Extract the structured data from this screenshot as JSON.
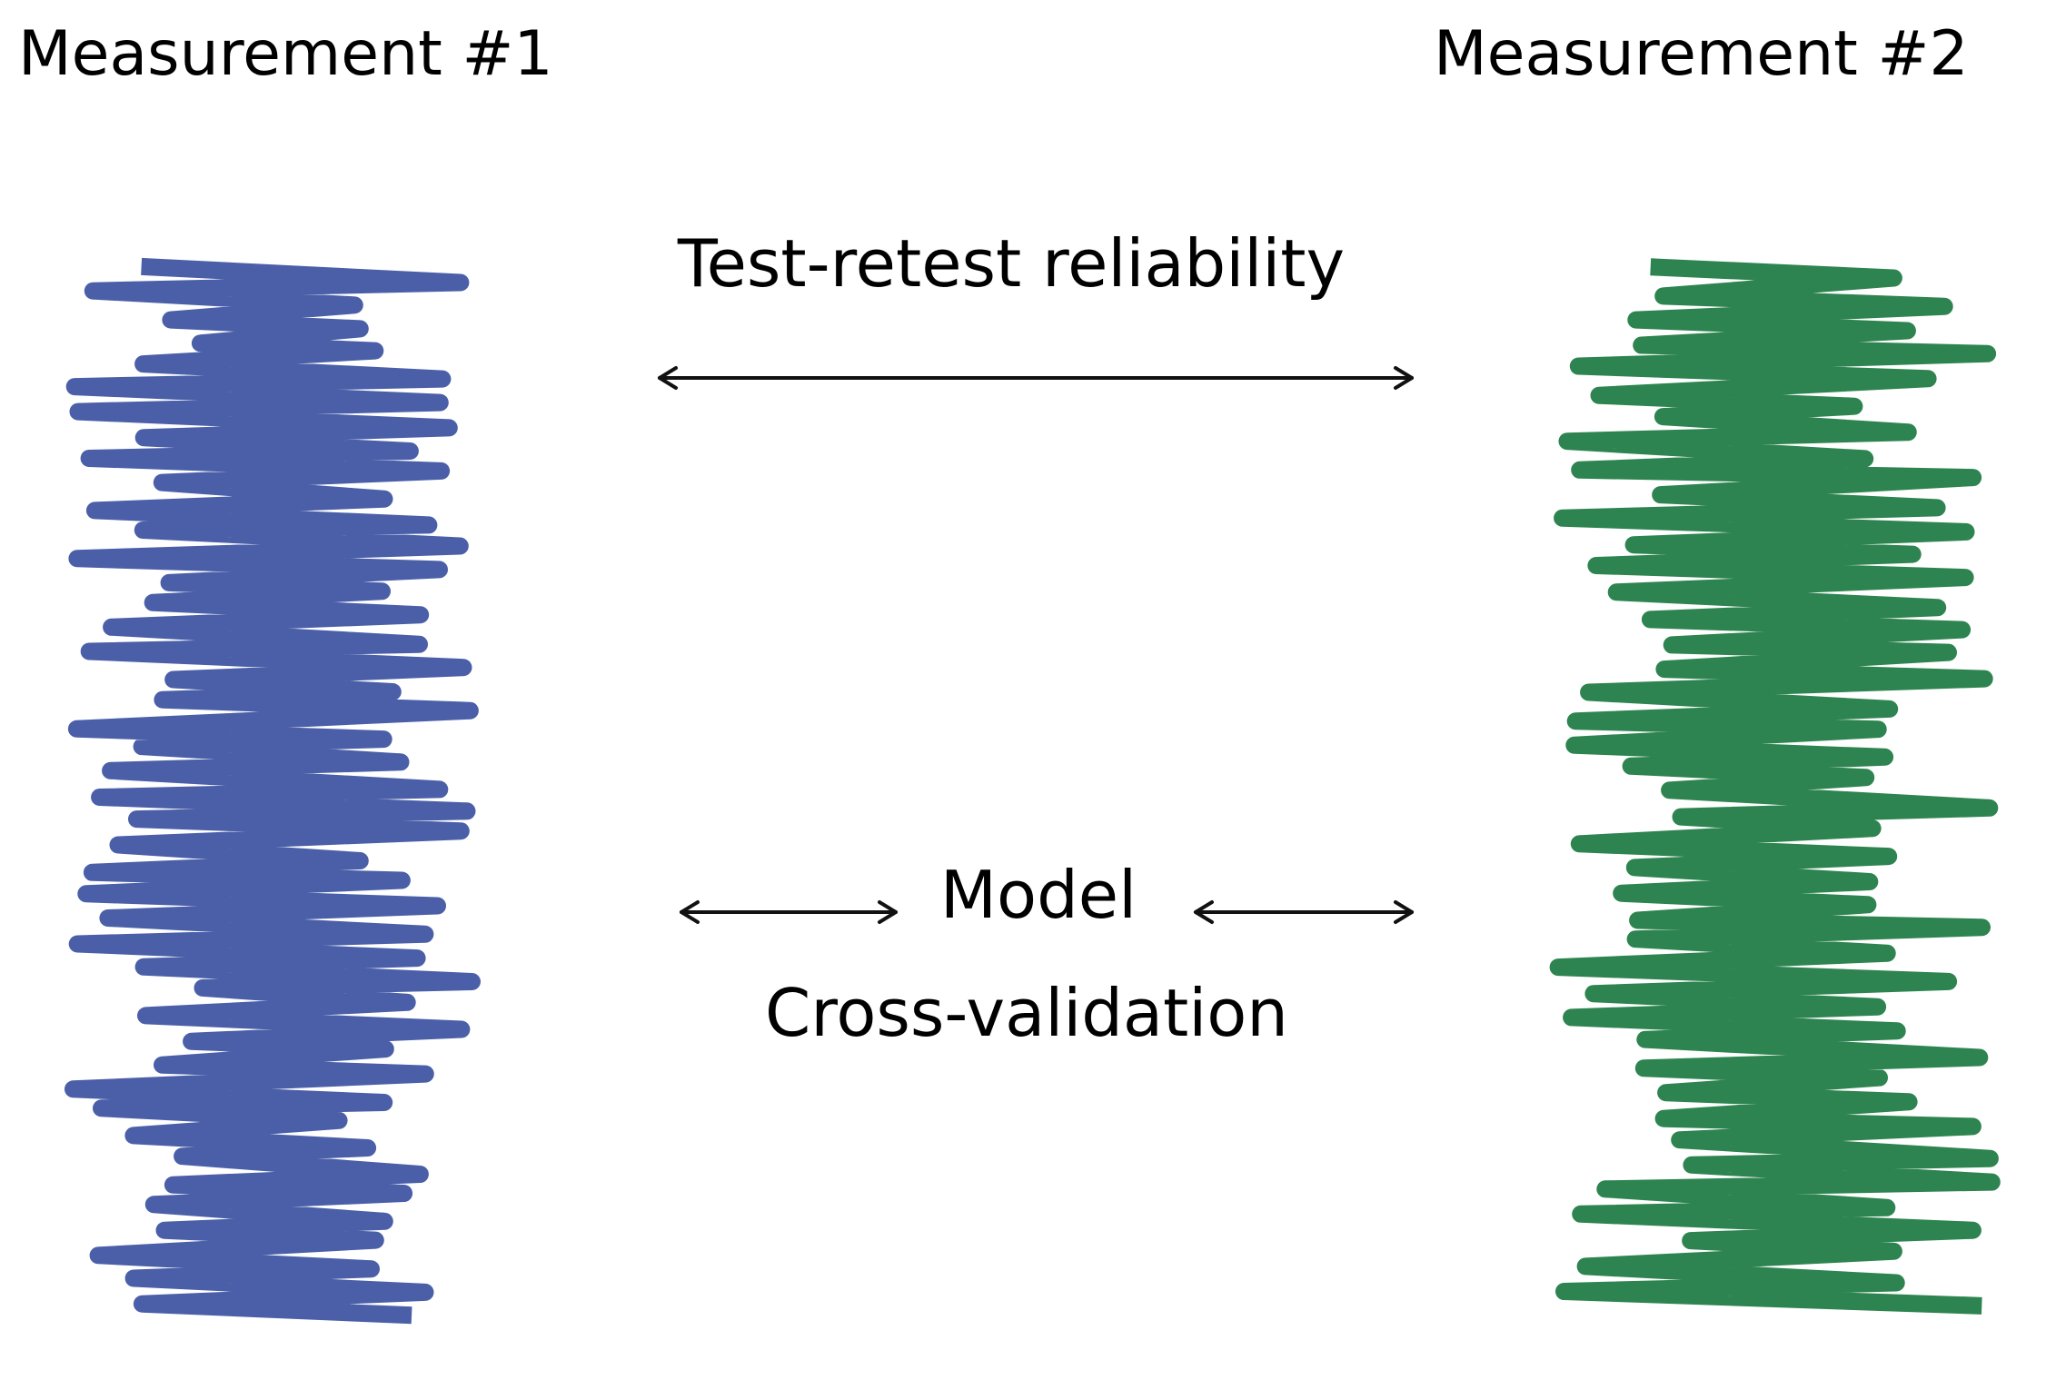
{
  "labels": {
    "measurement_1": "Measurement #1",
    "measurement_2": "Measurement #2",
    "test_retest": "Test-retest reliability",
    "model": "Model",
    "cross_validation": "Cross-validation"
  },
  "colors": {
    "trace_1": "#4a5fa8",
    "trace_2": "#2e8450",
    "arrow": "#111111"
  }
}
